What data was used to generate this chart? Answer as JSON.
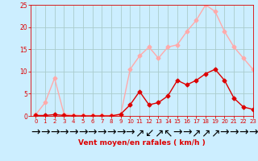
{
  "x": [
    0,
    1,
    2,
    3,
    4,
    5,
    6,
    7,
    8,
    9,
    10,
    11,
    12,
    13,
    14,
    15,
    16,
    17,
    18,
    19,
    20,
    21,
    22,
    23
  ],
  "y_rafales": [
    0.3,
    3.0,
    8.5,
    0.4,
    0.2,
    0.1,
    0.1,
    0.1,
    0.1,
    0.2,
    10.5,
    13.5,
    15.5,
    13.0,
    15.5,
    16.0,
    19.0,
    21.5,
    25.0,
    23.5,
    19.0,
    15.5,
    13.0,
    10.5
  ],
  "y_moyen": [
    0.1,
    0.1,
    0.3,
    0.1,
    0.0,
    0.0,
    0.0,
    0.0,
    0.0,
    0.4,
    2.5,
    5.5,
    2.5,
    3.0,
    4.5,
    8.0,
    7.0,
    8.0,
    9.5,
    10.5,
    8.0,
    4.0,
    2.0,
    1.5
  ],
  "color_rafales": "#ffaaaa",
  "color_moyen": "#dd0000",
  "bg_color": "#cceeff",
  "grid_color": "#aacccc",
  "xlabel": "Vent moyen/en rafales ( km/h )",
  "ylim": [
    0,
    25
  ],
  "xlim": [
    -0.5,
    23
  ],
  "yticks": [
    0,
    5,
    10,
    15,
    20,
    25
  ],
  "xticks": [
    0,
    1,
    2,
    3,
    4,
    5,
    6,
    7,
    8,
    9,
    10,
    11,
    12,
    13,
    14,
    15,
    16,
    17,
    18,
    19,
    20,
    21,
    22,
    23
  ],
  "markersize": 2.5,
  "linewidth": 1.0
}
